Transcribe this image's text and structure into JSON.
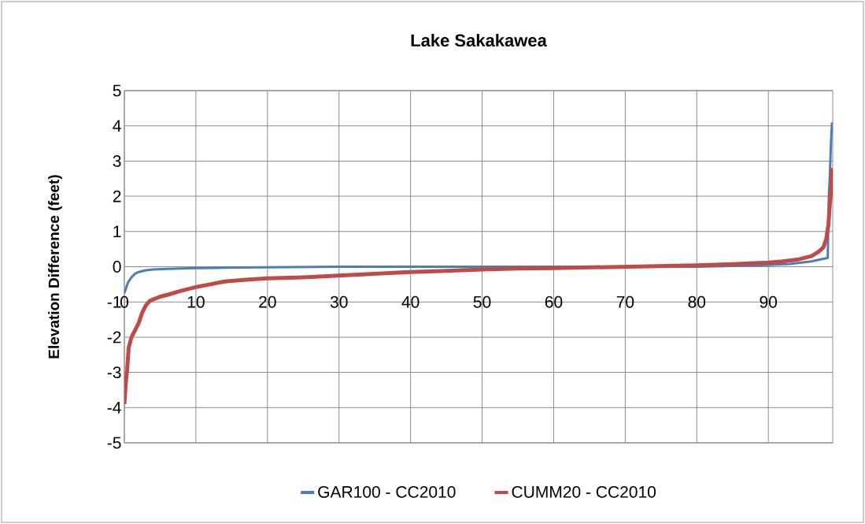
{
  "chart_data": {
    "type": "line",
    "title": "Lake Sakakawea",
    "ylabel": "Elevation Difference (feet)",
    "xlim": [
      0,
      99
    ],
    "xticks": [
      0,
      10,
      20,
      30,
      40,
      50,
      60,
      70,
      80,
      90
    ],
    "ylim": [
      -5,
      5
    ],
    "yticks": [
      -5,
      -4,
      -3,
      -2,
      -1,
      0,
      1,
      2,
      3,
      4,
      5
    ],
    "grid": true,
    "legend": "bottom",
    "marker": "none",
    "line_style": "solid",
    "series": [
      {
        "name": "GAR100 - CC2010",
        "color": "#4a7ebb",
        "x": [
          0,
          0.5,
          1,
          1.5,
          2,
          3,
          4,
          6,
          8,
          10,
          16,
          30,
          50,
          70,
          80,
          85,
          90,
          93,
          96,
          98.3,
          98.45,
          98.6,
          98.75,
          98.9
        ],
        "values": [
          -0.75,
          -0.45,
          -0.3,
          -0.2,
          -0.15,
          -0.1,
          -0.08,
          -0.06,
          -0.05,
          -0.04,
          -0.02,
          0,
          0,
          0,
          0,
          0.02,
          0.05,
          0.08,
          0.15,
          0.25,
          2.0,
          2.6,
          3.5,
          4.1
        ]
      },
      {
        "name": "CUMM20 - CC2010",
        "color": "#be4b48",
        "x": [
          0,
          0.2,
          0.4,
          0.6,
          1,
          1.5,
          2,
          2.5,
          3,
          3.5,
          4,
          5,
          6,
          8,
          10,
          12,
          14,
          17,
          20,
          25,
          30,
          35,
          40,
          45,
          50,
          55,
          60,
          65,
          70,
          75,
          80,
          85,
          88,
          90,
          92,
          94,
          95,
          96,
          97,
          97.7,
          98.1,
          98.4,
          98.6,
          98.8,
          98.9
        ],
        "values": [
          -3.9,
          -3.3,
          -2.9,
          -2.3,
          -2.0,
          -1.8,
          -1.6,
          -1.3,
          -1.1,
          -0.98,
          -0.93,
          -0.85,
          -0.8,
          -0.68,
          -0.58,
          -0.5,
          -0.42,
          -0.37,
          -0.33,
          -0.3,
          -0.25,
          -0.2,
          -0.15,
          -0.12,
          -0.08,
          -0.05,
          -0.04,
          -0.02,
          0,
          0.02,
          0.04,
          0.07,
          0.1,
          0.12,
          0.15,
          0.2,
          0.25,
          0.3,
          0.42,
          0.55,
          0.8,
          1.2,
          1.8,
          2.2,
          2.8
        ]
      }
    ]
  }
}
